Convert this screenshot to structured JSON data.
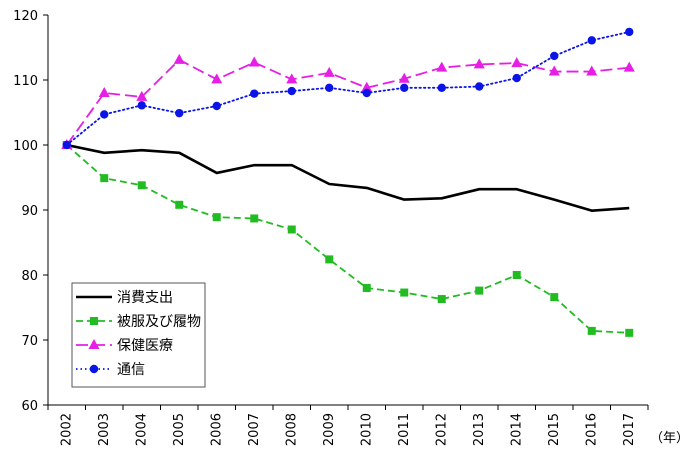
{
  "chart_data": {
    "type": "line",
    "title": "",
    "xlabel": "",
    "ylabel": "",
    "x_unit": "（年）",
    "categories": [
      "2002",
      "2003",
      "2004",
      "2005",
      "2006",
      "2007",
      "2008",
      "2009",
      "2010",
      "2011",
      "2012",
      "2013",
      "2014",
      "2015",
      "2016",
      "2017"
    ],
    "ylim": [
      60,
      120
    ],
    "yticks": [
      60,
      70,
      80,
      90,
      100,
      110,
      120
    ],
    "grid": false,
    "legend_position": "bottom-left",
    "series": [
      {
        "name": "消費支出",
        "color": "#000000",
        "line_style": "solid",
        "marker": "none",
        "values": [
          100,
          98.8,
          99.2,
          98.8,
          95.7,
          96.9,
          96.9,
          94.0,
          93.4,
          91.6,
          91.8,
          93.2,
          93.2,
          91.6,
          89.9,
          90.3
        ]
      },
      {
        "name": "被服及び履物",
        "color": "#22bb22",
        "line_style": "dashed",
        "marker": "square",
        "values": [
          100,
          94.9,
          93.8,
          90.8,
          88.9,
          88.7,
          87.0,
          82.4,
          78.0,
          77.3,
          76.3,
          77.6,
          80.0,
          76.6,
          71.4,
          71.1
        ]
      },
      {
        "name": "保健医療",
        "color": "#e61ee6",
        "line_style": "longdash",
        "marker": "triangle",
        "values": [
          100,
          108.0,
          107.4,
          113.1,
          110.1,
          112.7,
          110.1,
          111.1,
          108.8,
          110.2,
          111.9,
          112.4,
          112.6,
          111.3,
          111.3,
          111.9
        ]
      },
      {
        "name": "通信",
        "color": "#0a14e6",
        "line_style": "dotted",
        "marker": "circle",
        "values": [
          100,
          104.7,
          106.1,
          104.9,
          106.0,
          107.9,
          108.3,
          108.8,
          108.0,
          108.8,
          108.8,
          109.0,
          110.3,
          113.7,
          116.1,
          117.4
        ]
      }
    ]
  }
}
